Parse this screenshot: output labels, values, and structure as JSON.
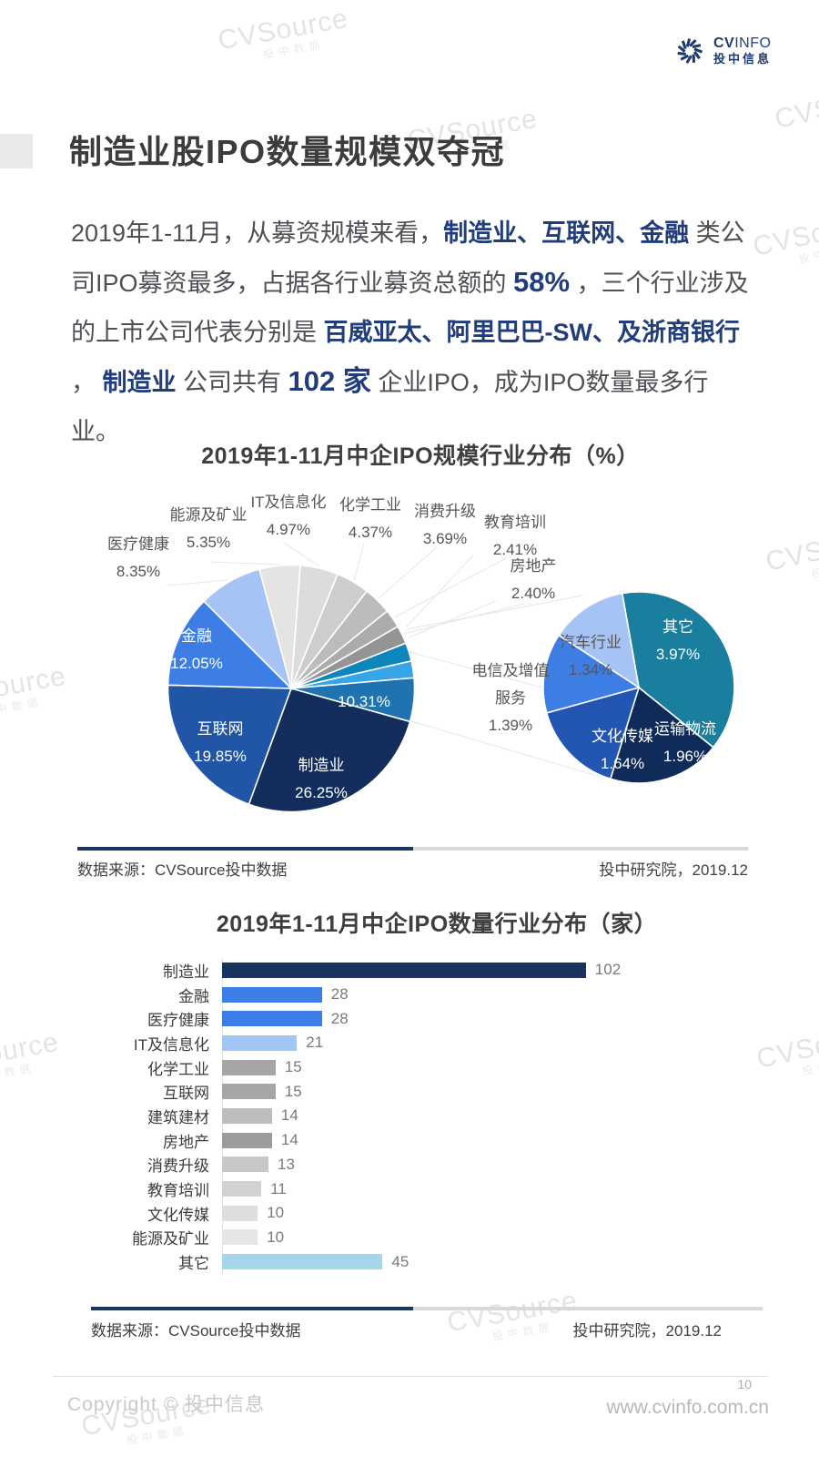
{
  "page": {
    "logo": {
      "brand_cv": "CV",
      "brand_info": "INFO",
      "brand_cn": "投中信息"
    },
    "watermark": {
      "main": "CVSource",
      "sub": "投中数据"
    },
    "title": "制造业股IPO数量规模双夺冠",
    "paragraph": {
      "seg1": "2019年1-11月，从募资规模来看，",
      "hl1": "制造业、互联网、金融",
      "seg2": " 类公司IPO募资最多，占据各行业募资总额的 ",
      "hl2": "58%",
      "seg3": " ，三个行业涉及的上市公司代表分别是 ",
      "hl3": "百威亚太、阿里巴巴-SW、及浙商银行",
      "seg4": " ， ",
      "hl4": "制造业",
      "seg5": " 公司共有 ",
      "hl5": "102 家",
      "seg6": " 企业IPO，成为IPO数量最多行业。"
    },
    "source_left": "数据来源：CVSource投中数据",
    "source_right": "投中研究院，2019.12",
    "footer": {
      "copyright": "Copyright © 投中信息",
      "page_no": "10",
      "site": "www.cvinfo.com.cn"
    }
  },
  "chart_data": [
    {
      "type": "pie",
      "variant": "pie-of-pie",
      "title": "2019年1-11月中企IPO规模行业分布（%）",
      "unit": "%",
      "slices": [
        {
          "label": "制造业",
          "value": 26.25,
          "color": "#132E5C"
        },
        {
          "label": "互联网",
          "value": 19.85,
          "color": "#2156A6"
        },
        {
          "label": "金融",
          "value": 12.05,
          "color": "#3C7EE4"
        },
        {
          "label": "医疗健康",
          "value": 8.35,
          "color": "#A6C3F6"
        },
        {
          "label": "能源及矿业",
          "value": 5.35,
          "color": "#E4E4E4"
        },
        {
          "label": "IT及信息化",
          "value": 4.97,
          "color": "#DCDCDC"
        },
        {
          "label": "化学工业",
          "value": 4.37,
          "color": "#CDCDCD"
        },
        {
          "label": "消费升级",
          "value": 3.69,
          "color": "#BCBCBC"
        },
        {
          "label": "教育培训",
          "value": 2.41,
          "color": "#ABABAB"
        },
        {
          "label": "房地产",
          "value": 2.4,
          "color": "#949494"
        },
        {
          "label": "其他(组合)",
          "value": 10.31,
          "color": "#1E73B0"
        }
      ],
      "other_sub": [
        {
          "value": 2.41,
          "color": "#0E86BB"
        },
        {
          "value": 2.2,
          "color": "#35A5E5"
        },
        {
          "value": 5.7,
          "color": "#1E73B0"
        }
      ],
      "secondary": [
        {
          "label": "其它",
          "value": 3.97,
          "color": "#1A7F9E"
        },
        {
          "label": "运输物流",
          "value": 1.96,
          "color": "#0E2B5A"
        },
        {
          "label": "文化传媒",
          "value": 1.64,
          "color": "#2355B2"
        },
        {
          "label": "电信及增值服务",
          "value": 1.39,
          "color": "#3C7EE4"
        },
        {
          "label": "汽车行业",
          "value": 1.34,
          "color": "#A6C3F6"
        }
      ]
    },
    {
      "type": "bar",
      "orientation": "horizontal",
      "title": "2019年1-11月中企IPO数量行业分布（家）",
      "categories": [
        "制造业",
        "金融",
        "医疗健康",
        "IT及信息化",
        "化学工业",
        "互联网",
        "建筑建材",
        "房地产",
        "消费升级",
        "教育培训",
        "文化传媒",
        "能源及矿业",
        "其它"
      ],
      "values": [
        102,
        28,
        28,
        21,
        15,
        15,
        14,
        14,
        13,
        11,
        10,
        10,
        45
      ],
      "colors": [
        "#16345E",
        "#3C7EE8",
        "#3C7EE8",
        "#A0C6F5",
        "#A6A6A6",
        "#A6A6A6",
        "#BDBDBD",
        "#9C9C9C",
        "#C8C8C8",
        "#D2D2D2",
        "#DEDEDE",
        "#E6E6E6",
        "#A5D7EC"
      ],
      "xlim": [
        0,
        104
      ]
    }
  ]
}
